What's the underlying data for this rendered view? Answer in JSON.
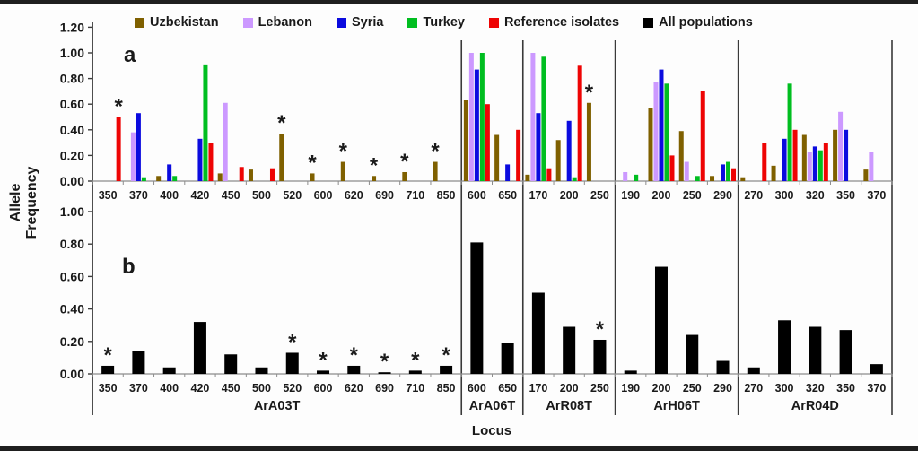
{
  "figure": {
    "y_axis_title": "Allele Frequency",
    "x_axis_title": "Locus",
    "panel_a_label": "a",
    "panel_b_label": "b"
  },
  "legend": [
    {
      "label": "Uzbekistan",
      "color": "#7f6000"
    },
    {
      "label": "Lebanon",
      "color": "#cc99ff"
    },
    {
      "label": "Syria",
      "color": "#0b0bdf"
    },
    {
      "label": "Turkey",
      "color": "#00be20"
    },
    {
      "label": "Reference isolates",
      "color": "#ee0404"
    },
    {
      "label": "All populations",
      "color": "#000000"
    }
  ],
  "chart_data": {
    "type": "bar",
    "title": "",
    "xlabel": "Locus",
    "ylabel": "Allele Frequency",
    "grid": false,
    "legend_position": "top",
    "significance_marker": {
      "symbol": "*",
      "color": "#dd0000"
    },
    "panels": {
      "a": {
        "label": "a",
        "ylim": [
          0,
          1.2
        ],
        "yticks": [
          "1.20",
          "1.00",
          "0.80",
          "0.60",
          "0.40",
          "0.20",
          "0.00"
        ],
        "series": [
          "Uzbekistan",
          "Lebanon",
          "Syria",
          "Turkey",
          "Reference isolates"
        ]
      },
      "b": {
        "label": "b",
        "ylim": [
          0,
          1.0
        ],
        "yticks": [
          "1.00",
          "0.80",
          "0.60",
          "0.40",
          "0.20",
          "0.00"
        ],
        "series": [
          "All populations"
        ]
      }
    },
    "groups": [
      {
        "locus": "ArA03T",
        "alleles": [
          {
            "x": "350",
            "a": {
              "Reference isolates": 0.5
            },
            "b": 0.05,
            "star_a": true,
            "star_b": true
          },
          {
            "x": "370",
            "a": {
              "Lebanon": 0.38,
              "Syria": 0.53,
              "Turkey": 0.03
            },
            "b": 0.14
          },
          {
            "x": "400",
            "a": {
              "Uzbekistan": 0.04,
              "Syria": 0.13,
              "Turkey": 0.04
            },
            "b": 0.04
          },
          {
            "x": "420",
            "a": {
              "Syria": 0.33,
              "Turkey": 0.91,
              "Reference isolates": 0.3
            },
            "b": 0.32
          },
          {
            "x": "450",
            "a": {
              "Uzbekistan": 0.06,
              "Lebanon": 0.61,
              "Reference isolates": 0.11
            },
            "b": 0.12
          },
          {
            "x": "500",
            "a": {
              "Uzbekistan": 0.09,
              "Reference isolates": 0.1
            },
            "b": 0.04
          },
          {
            "x": "520",
            "a": {
              "Uzbekistan": 0.37
            },
            "b": 0.13,
            "star_a": true,
            "star_b": true
          },
          {
            "x": "600",
            "a": {
              "Uzbekistan": 0.06
            },
            "b": 0.02,
            "star_a": true,
            "star_b": true
          },
          {
            "x": "620",
            "a": {
              "Uzbekistan": 0.15
            },
            "b": 0.05,
            "star_a": true,
            "star_b": true
          },
          {
            "x": "690",
            "a": {
              "Uzbekistan": 0.04
            },
            "b": 0.01,
            "star_a": true,
            "star_b": true
          },
          {
            "x": "710",
            "a": {
              "Uzbekistan": 0.07
            },
            "b": 0.02,
            "star_a": true,
            "star_b": true
          },
          {
            "x": "850",
            "a": {
              "Uzbekistan": 0.15
            },
            "b": 0.05,
            "star_a": true,
            "star_b": true
          }
        ]
      },
      {
        "locus": "ArA06T",
        "alleles": [
          {
            "x": "600",
            "a": {
              "Uzbekistan": 0.63,
              "Lebanon": 1.0,
              "Syria": 0.87,
              "Turkey": 1.0,
              "Reference isolates": 0.6
            },
            "b": 0.81
          },
          {
            "x": "650",
            "a": {
              "Uzbekistan": 0.36,
              "Syria": 0.13,
              "Reference isolates": 0.4
            },
            "b": 0.19
          }
        ]
      },
      {
        "locus": "ArR08T",
        "alleles": [
          {
            "x": "170",
            "a": {
              "Uzbekistan": 0.05,
              "Lebanon": 1.0,
              "Syria": 0.53,
              "Turkey": 0.97,
              "Reference isolates": 0.1
            },
            "b": 0.5
          },
          {
            "x": "200",
            "a": {
              "Uzbekistan": 0.32,
              "Syria": 0.47,
              "Turkey": 0.03,
              "Reference isolates": 0.9
            },
            "b": 0.29
          },
          {
            "x": "250",
            "a": {
              "Uzbekistan": 0.61
            },
            "b": 0.21,
            "star_a": true,
            "star_b": true
          }
        ]
      },
      {
        "locus": "ArH06T",
        "alleles": [
          {
            "x": "190",
            "a": {
              "Lebanon": 0.07,
              "Turkey": 0.05
            },
            "b": 0.02
          },
          {
            "x": "200",
            "a": {
              "Uzbekistan": 0.57,
              "Lebanon": 0.77,
              "Syria": 0.87,
              "Turkey": 0.76,
              "Reference isolates": 0.2
            },
            "b": 0.66
          },
          {
            "x": "250",
            "a": {
              "Uzbekistan": 0.39,
              "Lebanon": 0.15,
              "Turkey": 0.04,
              "Reference isolates": 0.7
            },
            "b": 0.24
          },
          {
            "x": "290",
            "a": {
              "Uzbekistan": 0.04,
              "Syria": 0.13,
              "Turkey": 0.15,
              "Reference isolates": 0.1
            },
            "b": 0.08
          }
        ]
      },
      {
        "locus": "ArR04D",
        "alleles": [
          {
            "x": "270",
            "a": {
              "Uzbekistan": 0.03,
              "Reference isolates": 0.3
            },
            "b": 0.04
          },
          {
            "x": "300",
            "a": {
              "Uzbekistan": 0.12,
              "Syria": 0.33,
              "Turkey": 0.76,
              "Reference isolates": 0.4
            },
            "b": 0.33
          },
          {
            "x": "320",
            "a": {
              "Uzbekistan": 0.36,
              "Lebanon": 0.23,
              "Syria": 0.27,
              "Turkey": 0.24,
              "Reference isolates": 0.3
            },
            "b": 0.29
          },
          {
            "x": "350",
            "a": {
              "Uzbekistan": 0.4,
              "Lebanon": 0.54,
              "Syria": 0.4
            },
            "b": 0.27
          },
          {
            "x": "370",
            "a": {
              "Uzbekistan": 0.09,
              "Lebanon": 0.23
            },
            "b": 0.06
          }
        ]
      }
    ]
  }
}
